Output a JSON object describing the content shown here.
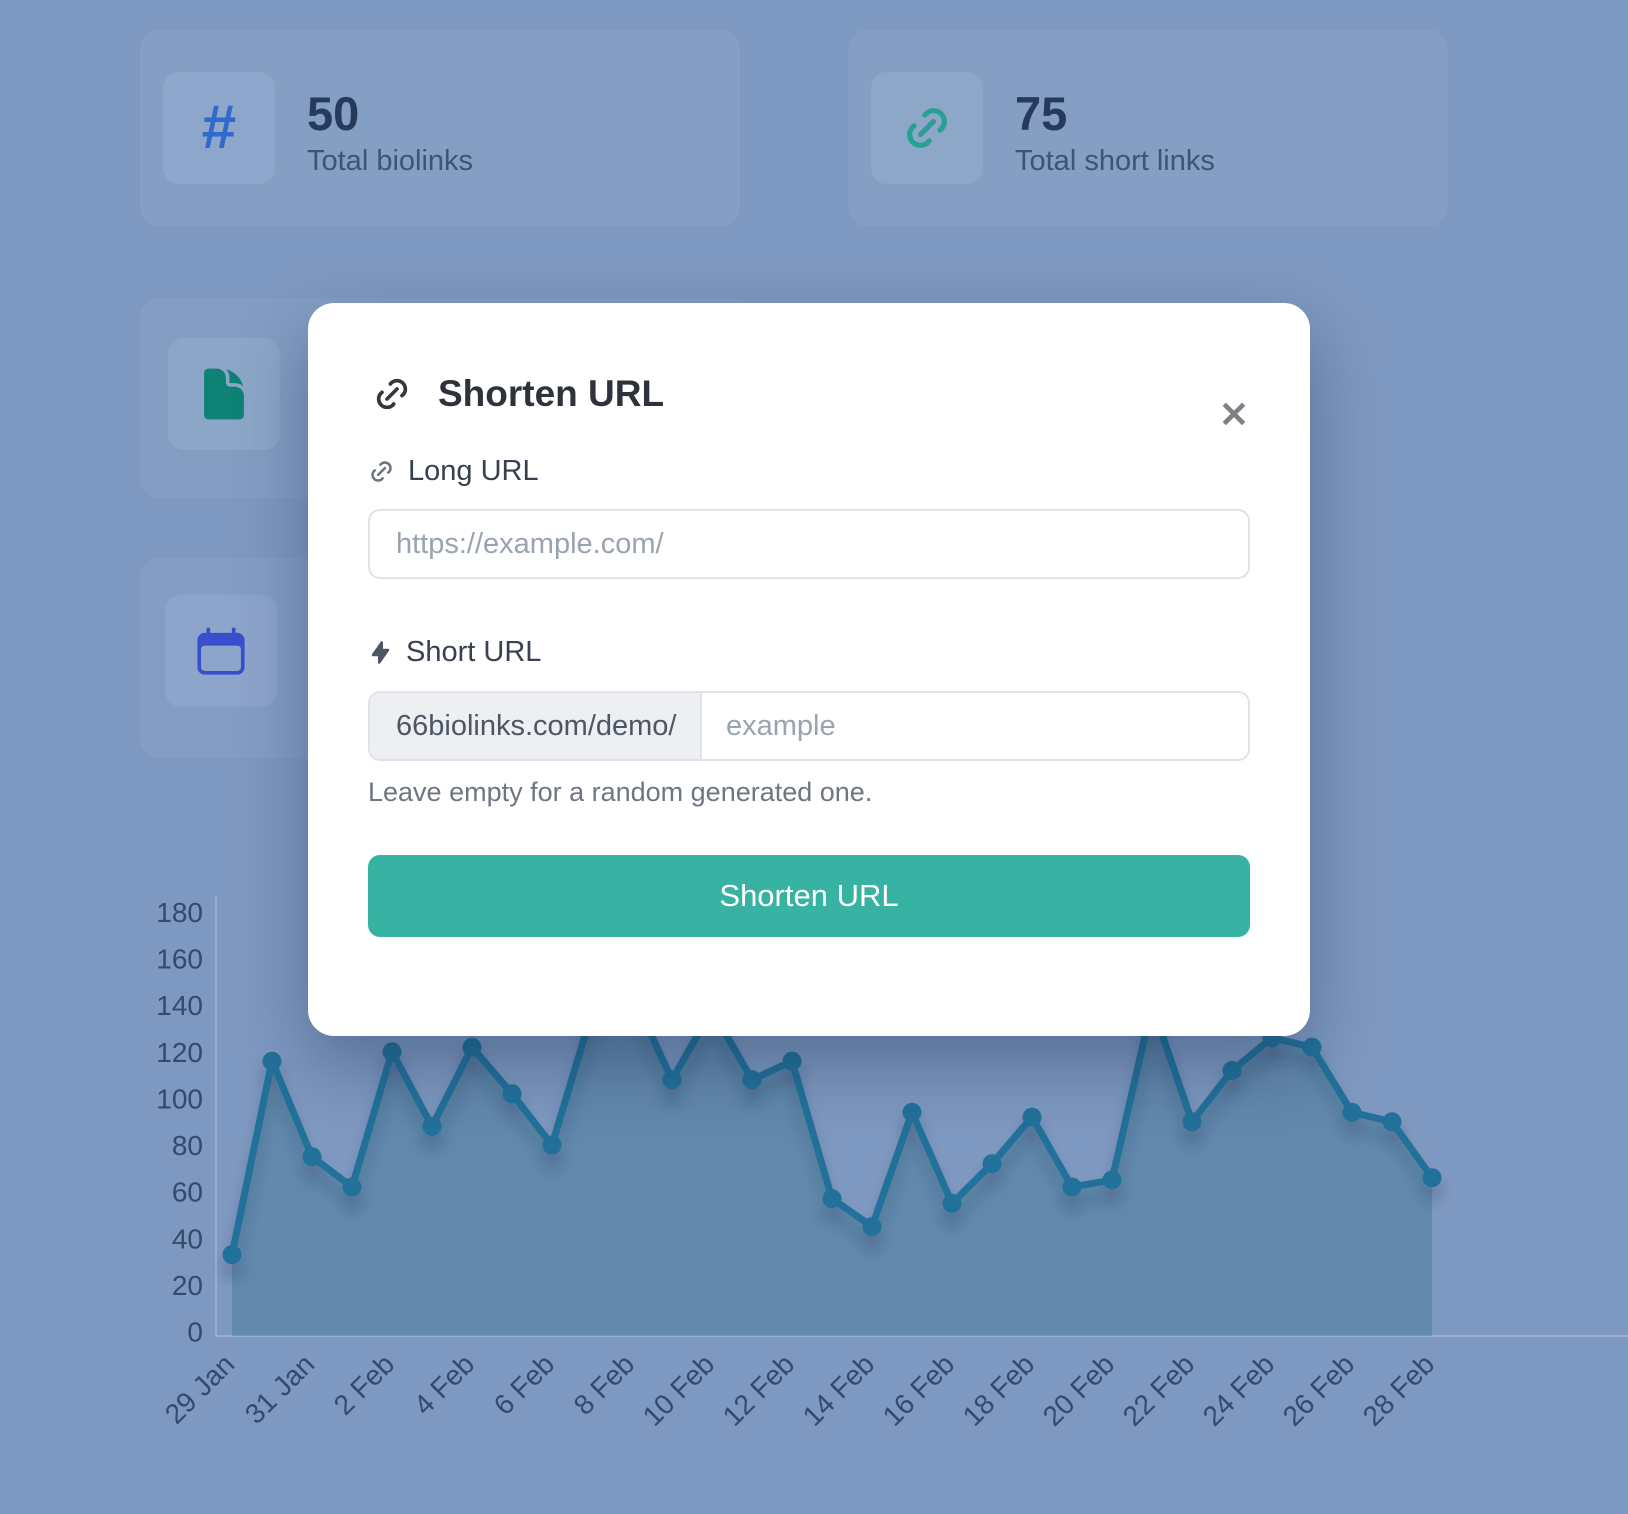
{
  "page": {
    "overlay_color": "#7e99c1",
    "accent_teal": "#38b2a3",
    "accent_blue": "#2f6acc"
  },
  "stats": [
    {
      "value": "50",
      "label": "Total biolinks",
      "icon": "hash-icon",
      "icon_color": "#2f6acc"
    },
    {
      "value": "75",
      "label": "Total short links",
      "icon": "link-icon",
      "icon_color": "#2aa095"
    }
  ],
  "side_cards": [
    {
      "icon": "document-icon",
      "icon_color": "#0f8276"
    },
    {
      "icon": "calendar-icon",
      "icon_color": "#3a4ed0"
    }
  ],
  "modal": {
    "title": "Shorten URL",
    "header_icon": "link-icon",
    "close_icon": "close-icon",
    "close_glyph": "✕",
    "long_url": {
      "label": "Long URL",
      "icon": "link-icon",
      "value": "",
      "placeholder": "https://example.com/"
    },
    "short_url": {
      "label": "Short URL",
      "icon": "bolt-icon",
      "prefix": "66biolinks.com/demo/",
      "value": "",
      "placeholder": "example",
      "helper": "Leave empty for a random generated one."
    },
    "submit_label": "Shorten URL"
  },
  "chart_data": {
    "type": "line",
    "title": "",
    "xlabel": "",
    "ylabel": "",
    "x": [
      "29 Jan",
      "30 Jan",
      "31 Jan",
      "1 Feb",
      "2 Feb",
      "3 Feb",
      "4 Feb",
      "5 Feb",
      "6 Feb",
      "7 Feb",
      "8 Feb",
      "9 Feb",
      "10 Feb",
      "11 Feb",
      "12 Feb",
      "13 Feb",
      "14 Feb",
      "15 Feb",
      "16 Feb",
      "17 Feb",
      "18 Feb",
      "19 Feb",
      "20 Feb",
      "21 Feb",
      "22 Feb",
      "23 Feb",
      "24 Feb",
      "25 Feb",
      "26 Feb",
      "27 Feb",
      "28 Feb"
    ],
    "values": [
      33,
      116,
      75,
      62,
      120,
      88,
      122,
      102,
      80,
      137,
      145,
      108,
      138,
      108,
      116,
      57,
      45,
      94,
      55,
      72,
      92,
      62,
      65,
      140,
      90,
      112,
      126,
      122,
      94,
      90,
      66
    ],
    "x_tick_labels": [
      "29 Jan",
      "31 Jan",
      "2 Feb",
      "4 Feb",
      "6 Feb",
      "8 Feb",
      "10 Feb",
      "12 Feb",
      "14 Feb",
      "16 Feb",
      "18 Feb",
      "20 Feb",
      "22 Feb",
      "24 Feb",
      "26 Feb",
      "28 Feb"
    ],
    "y_ticks": [
      0,
      20,
      40,
      60,
      80,
      100,
      120,
      140,
      160,
      180
    ],
    "ylim": [
      0,
      180
    ],
    "grid": false,
    "legend": false,
    "line_color": "#23719a",
    "fill_color": "rgba(38,104,128,0.30)",
    "tick_color": "#35496b"
  }
}
